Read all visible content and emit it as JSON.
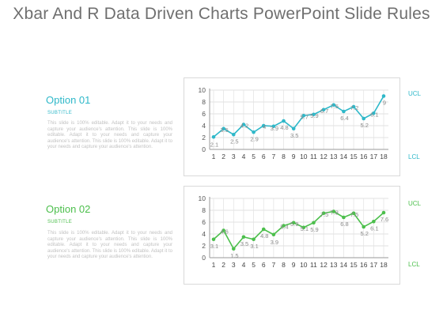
{
  "page": {
    "title": "Xbar And R Data Driven Charts PowerPoint Slide Rules"
  },
  "options": [
    {
      "title": "Option  01",
      "subtitle": "SUBTITLE",
      "body": "This slide is 100% editable. Adapt it to your needs and capture your audience's attention. This slide is 100% editable. Adapt it to your needs and capture your audience's attention. This slide is 100% editable. Adapt it to your needs and capture your audience's attention.",
      "color": "#2fb8c9"
    },
    {
      "title": "Option  02",
      "subtitle": "SUBTITLE",
      "body": "This slide is 100% editable. Adapt it to your needs and capture your audience's attention. This slide is 100% editable. Adapt it to your needs and capture your audience's attention. This slide is 100% editable. Adapt it to your needs and capture your audience's attention.",
      "color": "#4cbf4c"
    }
  ],
  "limits": {
    "ucl": "UCL",
    "lcl": "LCL"
  },
  "chart_data": [
    {
      "type": "line",
      "x": [
        1,
        2,
        3,
        4,
        5,
        6,
        7,
        8,
        9,
        10,
        11,
        12,
        13,
        14,
        15,
        16,
        17,
        18
      ],
      "values": [
        2.1,
        3.5,
        2.5,
        4.2,
        2.9,
        4,
        3.9,
        4.8,
        3.5,
        5.7,
        5.9,
        6.7,
        7.5,
        6.4,
        7.2,
        5.2,
        6.1,
        9
      ],
      "data_labels": [
        "2.1",
        "3.5",
        "2.5",
        "4.2",
        "2.9",
        "4",
        "3.9",
        "4.8",
        "3.5",
        "5.7",
        "5.9",
        "6.7",
        "7.5",
        "6.4",
        "7.2",
        "5.2",
        "6.1",
        "9"
      ],
      "yticks": [
        0,
        2,
        4,
        6,
        8,
        10
      ],
      "ylim": [
        0,
        10
      ],
      "grid": true,
      "color": "#2fb8c9"
    },
    {
      "type": "line",
      "x": [
        1,
        2,
        3,
        4,
        5,
        6,
        7,
        8,
        9,
        10,
        11,
        12,
        13,
        14,
        15,
        16,
        17,
        18
      ],
      "values": [
        3.1,
        4.6,
        1.5,
        3.5,
        3.1,
        4.8,
        3.9,
        5.4,
        5.9,
        5.1,
        5.9,
        7.5,
        7.8,
        6.8,
        7.5,
        5.2,
        6.1,
        7.6
      ],
      "data_labels": [
        "3.1",
        "4.6",
        "1.5",
        "3.5",
        "3.1",
        "4.8",
        "3.9",
        "5.4",
        "5.9",
        "5.1",
        "5.9",
        "7.5",
        "7.8",
        "6.8",
        "7.5",
        "5.2",
        "6.1",
        "7.6"
      ],
      "yticks": [
        0,
        2,
        4,
        6,
        8,
        10
      ],
      "ylim": [
        0,
        10
      ],
      "grid": true,
      "color": "#4cbf4c"
    }
  ]
}
